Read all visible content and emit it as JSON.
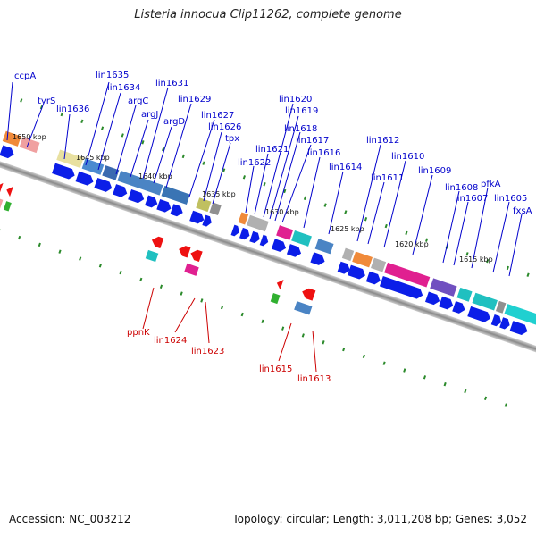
{
  "title": "Listeria innocua Clip11262, complete genome",
  "accession": "Accession: NC_003212",
  "summary": "Topology: circular; Length: 3,011,208 bp; Genes: 3,052",
  "colors": {
    "strand_gene": "#0000ee",
    "minus_gene": "#ee0000",
    "label_top": "#0000cc",
    "label_bottom": "#cc0000",
    "tick": "#228822",
    "axis": "#888888"
  },
  "kbp_labels": [
    "1650 kbp",
    "1645 kbp",
    "1640 kbp",
    "1635 kbp",
    "1630 kbp",
    "1625 kbp",
    "1620 kbp",
    "1615 kbp"
  ],
  "top_gene_labels": [
    "ccpA",
    "tyrS",
    "lin1636",
    "lin1635",
    "lin1634",
    "argC",
    "argJ",
    "lin1631",
    "argD",
    "lin1629",
    "lin1627",
    "lin1626",
    "tpx",
    "lin1622",
    "lin1621",
    "lin1620",
    "lin1619",
    "lin1618",
    "lin1617",
    "lin1616",
    "lin1614",
    "lin1612",
    "lin1611",
    "lin1610",
    "lin1609",
    "lin1608",
    "lin1607",
    "pfkA",
    "lin1605",
    "fxsA"
  ],
  "bottom_gene_labels": [
    "ppnK",
    "lin1624",
    "lin1623",
    "lin1615",
    "lin1613"
  ]
}
